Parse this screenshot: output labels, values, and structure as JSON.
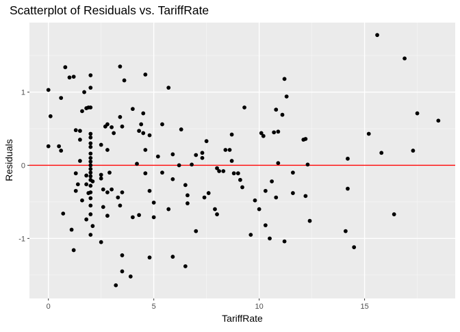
{
  "chart_data": {
    "type": "scatter",
    "title": "Scatterplot of Residuals vs. TariffRate",
    "xlabel": "TariffRate",
    "ylabel": "Residuals",
    "xlim": [
      -0.9,
      19.3
    ],
    "ylim": [
      -1.82,
      1.95
    ],
    "xticks": [
      0,
      5,
      10,
      15
    ],
    "yticks": [
      -1,
      0,
      1
    ],
    "grid": true,
    "reference_line": {
      "y": 0,
      "color": "#ff0000"
    },
    "point_color": "#000000",
    "panel_background": "#ebebeb",
    "points": [
      [
        0,
        1.03
      ],
      [
        0.1,
        0.67
      ],
      [
        0,
        0.26
      ],
      [
        0.5,
        0.26
      ],
      [
        0.6,
        0.92
      ],
      [
        0.6,
        0.2
      ],
      [
        0.7,
        -0.66
      ],
      [
        0.8,
        1.34
      ],
      [
        1,
        1.2
      ],
      [
        1.1,
        -0.88
      ],
      [
        1.2,
        1.21
      ],
      [
        1.2,
        -1.16
      ],
      [
        1.3,
        0.48
      ],
      [
        1.3,
        -0.11
      ],
      [
        1.3,
        -0.35
      ],
      [
        1.4,
        -0.26
      ],
      [
        1.5,
        0.47
      ],
      [
        1.5,
        0.35
      ],
      [
        1.5,
        0.06
      ],
      [
        1.6,
        0.74
      ],
      [
        1.6,
        -0.48
      ],
      [
        1.7,
        1
      ],
      [
        1.8,
        0.78
      ],
      [
        1.8,
        -0.14
      ],
      [
        1.8,
        -0.26
      ],
      [
        1.8,
        -0.74
      ],
      [
        1.9,
        0.79
      ],
      [
        1.9,
        -0.38
      ],
      [
        2,
        1.23
      ],
      [
        2,
        1.06
      ],
      [
        2,
        0.79
      ],
      [
        2,
        0.43
      ],
      [
        2,
        0.38
      ],
      [
        2,
        0.3
      ],
      [
        2,
        0.25
      ],
      [
        2,
        0.16
      ],
      [
        2,
        0.1
      ],
      [
        2,
        0.05
      ],
      [
        2,
        0
      ],
      [
        2,
        -0.05
      ],
      [
        2,
        -0.1
      ],
      [
        2,
        -0.15
      ],
      [
        2,
        -0.2
      ],
      [
        2,
        -0.28
      ],
      [
        2,
        -0.37
      ],
      [
        2,
        -0.45
      ],
      [
        2,
        -0.55
      ],
      [
        2,
        -0.67
      ],
      [
        2,
        -0.95
      ],
      [
        2.1,
        -0.83
      ],
      [
        2.1,
        -0.22
      ],
      [
        2.5,
        0.28
      ],
      [
        2.5,
        -0.13
      ],
      [
        2.5,
        -0.18
      ],
      [
        2.6,
        -0.33
      ],
      [
        2.6,
        -0.57
      ],
      [
        2.5,
        -1.05
      ],
      [
        2.7,
        0.53
      ],
      [
        2.8,
        0.56
      ],
      [
        2.8,
        0.21
      ],
      [
        2.8,
        -0.37
      ],
      [
        2.8,
        -0.69
      ],
      [
        2.9,
        -0.1
      ],
      [
        3,
        0.52
      ],
      [
        3,
        -0.33
      ],
      [
        3.1,
        0.44
      ],
      [
        3.2,
        -1.64
      ],
      [
        3.3,
        -0.44
      ],
      [
        3.4,
        1.35
      ],
      [
        3.4,
        0.66
      ],
      [
        3.4,
        -0.55
      ],
      [
        3.5,
        0.53
      ],
      [
        3.5,
        -0.37
      ],
      [
        3.5,
        -1.23
      ],
      [
        3.5,
        -1.45
      ],
      [
        3.6,
        1.16
      ],
      [
        3.9,
        -1.52
      ],
      [
        4,
        0.77
      ],
      [
        4,
        -0.71
      ],
      [
        4.2,
        0.02
      ],
      [
        4.3,
        0.47
      ],
      [
        4.3,
        -0.68
      ],
      [
        4.4,
        0.56
      ],
      [
        4.5,
        0.71
      ],
      [
        4.5,
        0.44
      ],
      [
        4.6,
        1.24
      ],
      [
        4.6,
        0.21
      ],
      [
        4.6,
        -0.11
      ],
      [
        4.8,
        0.41
      ],
      [
        4.8,
        -0.35
      ],
      [
        4.8,
        -1.26
      ],
      [
        5,
        -0.51
      ],
      [
        5,
        -0.71
      ],
      [
        5.2,
        0.12
      ],
      [
        5.4,
        0.56
      ],
      [
        5.4,
        -0.1
      ],
      [
        5.7,
        1.06
      ],
      [
        5.7,
        -0.6
      ],
      [
        5.9,
        0.15
      ],
      [
        5.9,
        -0.19
      ],
      [
        5.9,
        -1.25
      ],
      [
        6.2,
        0
      ],
      [
        6.3,
        0.49
      ],
      [
        6.5,
        -0.27
      ],
      [
        6.5,
        -1.38
      ],
      [
        6.6,
        -0.41
      ],
      [
        6.6,
        -0.52
      ],
      [
        6.8,
        0.01
      ],
      [
        7,
        0.14
      ],
      [
        7,
        -0.9
      ],
      [
        7.3,
        0.17
      ],
      [
        7.3,
        0.1
      ],
      [
        7.4,
        -0.44
      ],
      [
        7.5,
        0.33
      ],
      [
        7.6,
        -0.38
      ],
      [
        7.9,
        -0.6
      ],
      [
        8,
        -0.67
      ],
      [
        8,
        -0.04
      ],
      [
        8.1,
        -0.08
      ],
      [
        8.3,
        -0.08
      ],
      [
        8.4,
        0.21
      ],
      [
        8.6,
        0.21
      ],
      [
        8.7,
        0.42
      ],
      [
        8.7,
        0.06
      ],
      [
        8.8,
        -0.11
      ],
      [
        9,
        -0.11
      ],
      [
        9.1,
        -0.2
      ],
      [
        9.2,
        -0.3
      ],
      [
        9.3,
        0.79
      ],
      [
        9.6,
        -0.95
      ],
      [
        9.8,
        -0.48
      ],
      [
        10,
        -0.6
      ],
      [
        10.1,
        0.44
      ],
      [
        10.2,
        0.4
      ],
      [
        10.3,
        -0.35
      ],
      [
        10.3,
        -0.82
      ],
      [
        10.5,
        -1
      ],
      [
        10.6,
        -0.22
      ],
      [
        10.7,
        0.45
      ],
      [
        10.8,
        0.76
      ],
      [
        10.8,
        -0.44
      ],
      [
        10.9,
        0.46
      ],
      [
        10.9,
        0.03
      ],
      [
        11.1,
        0.69
      ],
      [
        11.2,
        1.18
      ],
      [
        11.2,
        -1.04
      ],
      [
        11.3,
        0.94
      ],
      [
        11.6,
        -0.1
      ],
      [
        11.6,
        -0.38
      ],
      [
        12.1,
        0.35
      ],
      [
        12.2,
        0.36
      ],
      [
        12.2,
        -0.42
      ],
      [
        12.3,
        0.01
      ],
      [
        12.4,
        -0.76
      ],
      [
        14.1,
        -0.9
      ],
      [
        14.2,
        0.09
      ],
      [
        14.2,
        -0.32
      ],
      [
        14.5,
        -1.12
      ],
      [
        15.2,
        0.43
      ],
      [
        15.6,
        1.78
      ],
      [
        15.8,
        0.17
      ],
      [
        16.4,
        -0.67
      ],
      [
        16.9,
        1.46
      ],
      [
        17.3,
        0.2
      ],
      [
        17.5,
        0.71
      ],
      [
        18.5,
        0.61
      ]
    ]
  }
}
